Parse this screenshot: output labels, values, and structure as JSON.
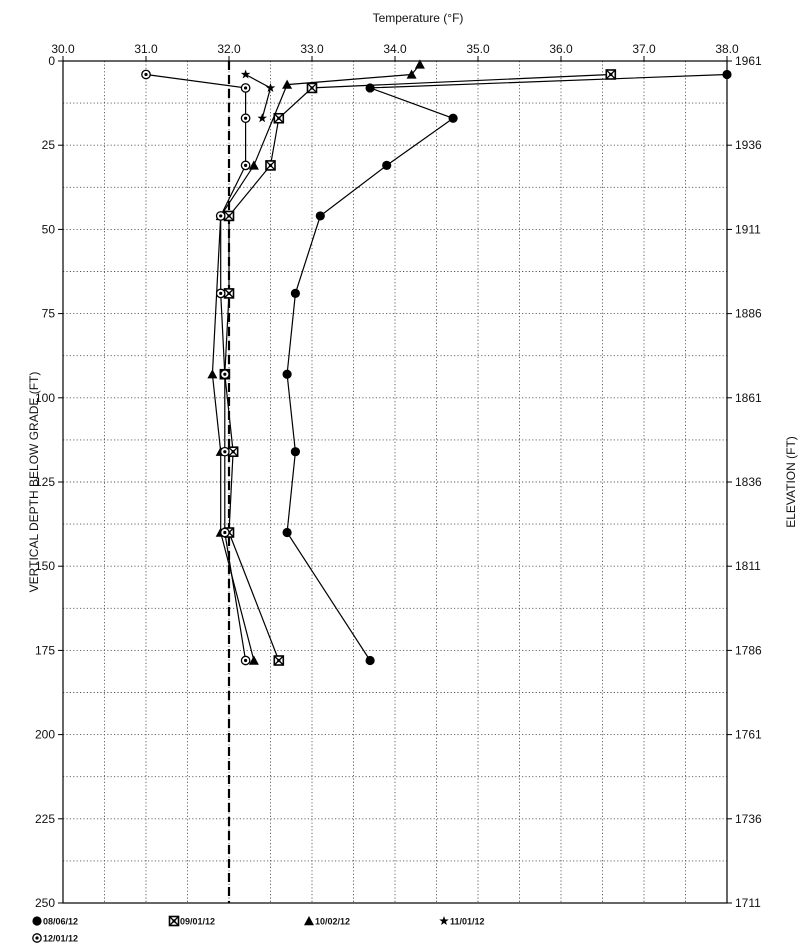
{
  "chart_data": {
    "type": "line",
    "title": "Temperature (°F)",
    "xlabel": "Temperature (°F)",
    "ylabel": "VERTICAL DEPTH BELOW GRADE (FT)",
    "y2label": "ELEVATION (FT)",
    "xlim": [
      30.0,
      38.0
    ],
    "ylim": [
      0,
      250
    ],
    "y_inverted": true,
    "grid": true,
    "legend_position": "bottom-left",
    "x_ticks": [
      "30.0",
      "31.0",
      "32.0",
      "33.0",
      "34.0",
      "35.0",
      "36.0",
      "37.0",
      "38.0"
    ],
    "y_ticks": [
      "0",
      "25",
      "50",
      "75",
      "100",
      "125",
      "150",
      "175",
      "200",
      "225",
      "250"
    ],
    "y2_ticks": [
      "1961",
      "1936",
      "1911",
      "1886",
      "1861",
      "1836",
      "1811",
      "1786",
      "1761",
      "1736",
      "1711"
    ],
    "reference_line": {
      "x": 32.0,
      "style": "dashed"
    },
    "series": [
      {
        "name": "08/06/12",
        "marker": "circle-filled",
        "points": [
          [
            38.0,
            4
          ],
          [
            33.7,
            8
          ],
          [
            34.7,
            17
          ],
          [
            33.9,
            31
          ],
          [
            33.1,
            46
          ],
          [
            32.8,
            69
          ],
          [
            32.7,
            93
          ],
          [
            32.8,
            116
          ],
          [
            32.7,
            140
          ],
          [
            33.7,
            178
          ]
        ]
      },
      {
        "name": "09/01/12",
        "marker": "square-x",
        "points": [
          [
            36.6,
            4
          ],
          [
            33.0,
            8
          ],
          [
            32.6,
            17
          ],
          [
            32.5,
            31
          ],
          [
            32.0,
            46
          ],
          [
            32.0,
            69
          ],
          [
            31.95,
            93
          ],
          [
            32.05,
            116
          ],
          [
            32.0,
            140
          ],
          [
            32.6,
            178
          ]
        ]
      },
      {
        "name": "10/02/12",
        "marker": "triangle-filled",
        "points": [
          [
            34.3,
            1
          ],
          [
            34.2,
            4
          ],
          [
            32.7,
            7
          ],
          [
            32.3,
            31
          ],
          [
            31.9,
            46
          ],
          [
            31.8,
            93
          ],
          [
            31.9,
            116
          ],
          [
            31.9,
            140
          ],
          [
            32.3,
            178
          ]
        ]
      },
      {
        "name": "11/01/12",
        "marker": "star",
        "points": [
          [
            32.2,
            4
          ],
          [
            32.5,
            8
          ],
          [
            32.4,
            17
          ]
        ]
      },
      {
        "name": "12/01/12",
        "marker": "circle-dot",
        "points": [
          [
            31.0,
            4
          ],
          [
            32.2,
            8
          ],
          [
            32.2,
            17
          ],
          [
            32.2,
            31
          ],
          [
            31.9,
            46
          ],
          [
            31.9,
            69
          ],
          [
            31.95,
            93
          ],
          [
            31.95,
            116
          ],
          [
            31.95,
            140
          ],
          [
            32.2,
            178
          ]
        ]
      }
    ]
  }
}
